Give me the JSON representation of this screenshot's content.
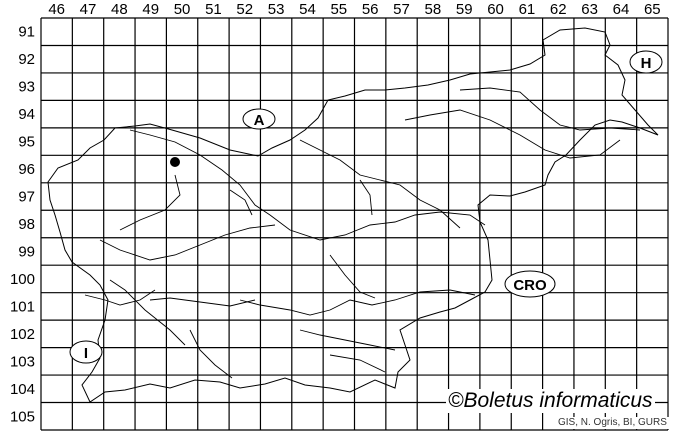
{
  "map": {
    "column_labels": [
      "46",
      "47",
      "48",
      "49",
      "50",
      "51",
      "52",
      "53",
      "54",
      "55",
      "56",
      "57",
      "58",
      "59",
      "60",
      "61",
      "62",
      "63",
      "64",
      "65"
    ],
    "row_labels": [
      "91",
      "92",
      "93",
      "94",
      "95",
      "96",
      "97",
      "98",
      "99",
      "100",
      "101",
      "102",
      "103",
      "104",
      "105"
    ],
    "country_labels": {
      "austria": "A",
      "hungary": "H",
      "croatia": "CRO",
      "italy": "I"
    },
    "record_marker": {
      "column": "50",
      "row": "96"
    },
    "colors": {
      "lines": "#000000",
      "background": "#ffffff"
    }
  },
  "copyright": "©Boletus informaticus",
  "credit": "GIS, N. Ogris, BI, GURS"
}
